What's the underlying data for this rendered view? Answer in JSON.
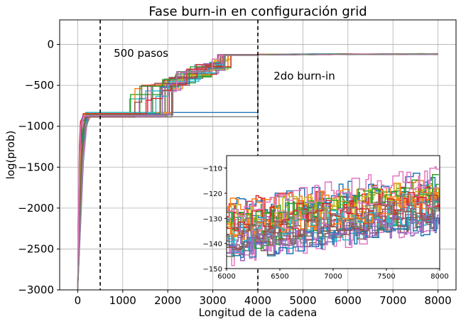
{
  "chart_data": [
    {
      "type": "line",
      "title": "Fase burn-in en configuración grid",
      "xlabel": "Longitud de la cadena",
      "ylabel": "log(prob)",
      "xlim": [
        -400,
        8400
      ],
      "ylim": [
        -3000,
        300
      ],
      "xticks": [
        0,
        1000,
        2000,
        3000,
        4000,
        5000,
        6000,
        7000,
        8000
      ],
      "yticks": [
        0,
        -500,
        -1000,
        -1500,
        -2000,
        -2500,
        -3000
      ],
      "xtick_labels": [
        "0",
        "1000",
        "2000",
        "3000",
        "4000",
        "5000",
        "6000",
        "7000",
        "8000"
      ],
      "ytick_labels": [
        "0",
        "−500",
        "−1000",
        "−1500",
        "−2000",
        "−2500",
        "−3000"
      ],
      "grid": true,
      "vlines": [
        500,
        4000
      ],
      "annotations": [
        {
          "text": "500 pasos",
          "x": 800,
          "y": -150
        },
        {
          "text": "2do burn-in",
          "x": 4350,
          "y": -430
        }
      ],
      "n_walkers": 28,
      "series_summary": {
        "steps": [
          {
            "x": 0,
            "y_min": -3000,
            "y_max": -3000
          },
          {
            "x": 150,
            "y_min": -1050,
            "y_max": -830
          },
          {
            "x": 500,
            "y_min": -880,
            "y_max": -830
          },
          {
            "x": 1500,
            "y_min": -880,
            "y_max": -700
          },
          {
            "x": 2800,
            "y_min": -850,
            "y_max": -400
          },
          {
            "x": 3500,
            "y_min": -830,
            "y_max": -130
          },
          {
            "x": 4000,
            "y_min": -135,
            "y_max": -125
          },
          {
            "x": 8000,
            "y_min": -130,
            "y_max": -115
          }
        ]
      }
    },
    {
      "type": "line",
      "title": "",
      "xlabel": "",
      "ylabel": "",
      "xlim": [
        6000,
        8000
      ],
      "ylim": [
        -150,
        -105
      ],
      "xticks": [
        6000,
        6500,
        7000,
        7500,
        8000
      ],
      "yticks": [
        -110,
        -120,
        -130,
        -140,
        -150
      ],
      "xtick_labels": [
        "6000",
        "6500",
        "7000",
        "7500",
        "8000"
      ],
      "ytick_labels": [
        "−110",
        "−120",
        "−130",
        "−140",
        "−150"
      ],
      "grid": false,
      "n_walkers": 28,
      "series_summary": {
        "trend": [
          {
            "x": 6000,
            "y_low": -145,
            "y_high": -126
          },
          {
            "x": 7000,
            "y_low": -141,
            "y_high": -119
          },
          {
            "x": 8000,
            "y_low": -134,
            "y_high": -115
          }
        ]
      }
    }
  ],
  "colors": [
    "#1f77b4",
    "#ff7f0e",
    "#2ca02c",
    "#d62728",
    "#9467bd",
    "#8c564b",
    "#e377c2",
    "#7f7f7f",
    "#bcbd22",
    "#17becf"
  ]
}
